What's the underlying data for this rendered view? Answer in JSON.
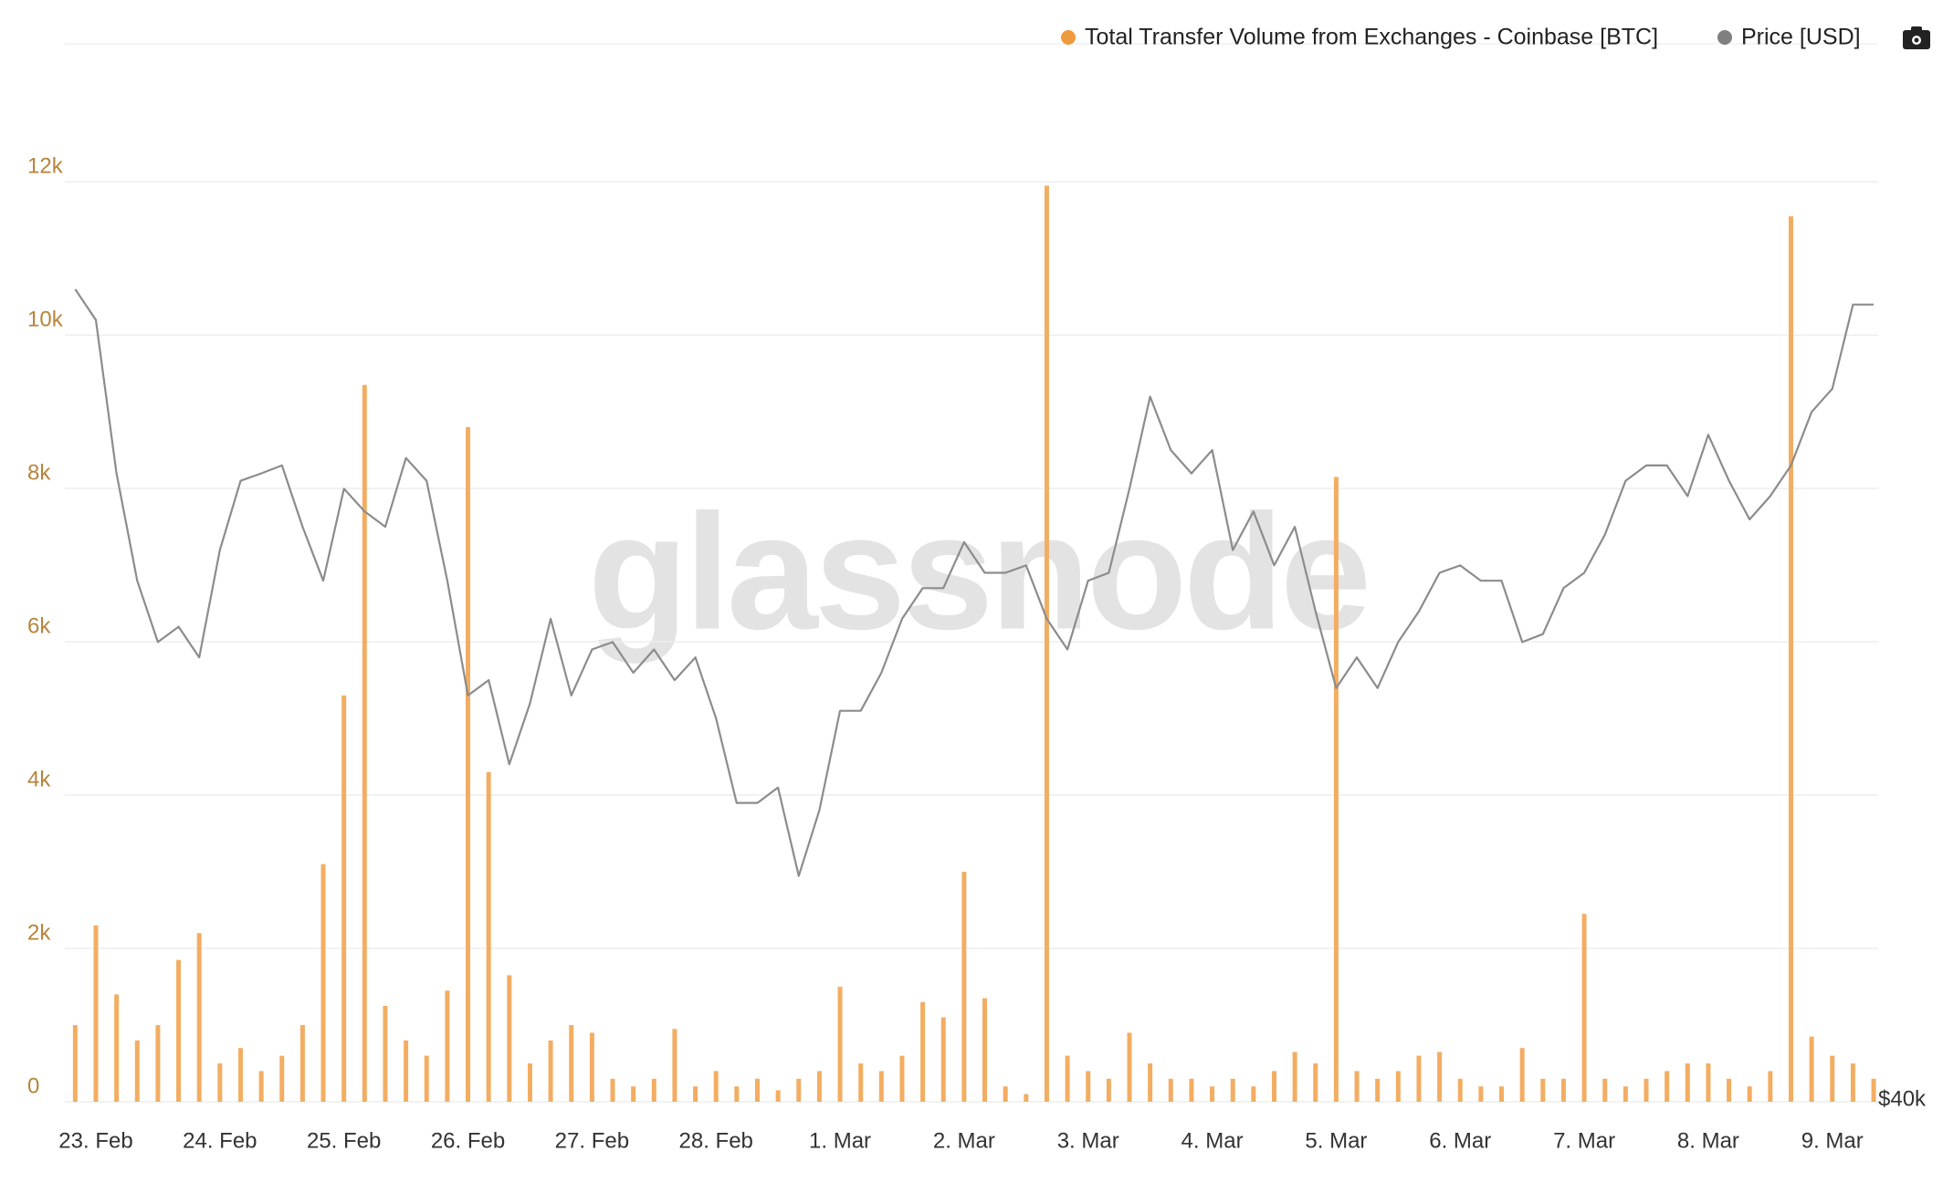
{
  "chart_data": {
    "type": "bar-line",
    "watermark": "glassnode",
    "categories": [
      null,
      "23. Feb",
      null,
      null,
      null,
      null,
      null,
      "24. Feb",
      null,
      null,
      null,
      null,
      null,
      "25. Feb",
      null,
      null,
      null,
      null,
      null,
      "26. Feb",
      null,
      null,
      null,
      null,
      null,
      "27. Feb",
      null,
      null,
      null,
      null,
      null,
      "28. Feb",
      null,
      null,
      null,
      null,
      null,
      "1. Mar",
      null,
      null,
      null,
      null,
      null,
      "2. Mar",
      null,
      null,
      null,
      null,
      null,
      "3. Mar",
      null,
      null,
      null,
      null,
      null,
      "4. Mar",
      null,
      null,
      null,
      null,
      null,
      "5. Mar",
      null,
      null,
      null,
      null,
      null,
      "6. Mar",
      null,
      null,
      null,
      null,
      null,
      "7. Mar",
      null,
      null,
      null,
      null,
      null,
      "8. Mar",
      null,
      null,
      null,
      null,
      null,
      "9. Mar",
      null,
      null
    ],
    "series": [
      {
        "name": "Total Transfer Volume from Exchanges - Coinbase [BTC]",
        "color": "#f3ad62",
        "type": "bar",
        "values": [
          1000,
          2300,
          1400,
          800,
          1000,
          1850,
          2200,
          500,
          700,
          400,
          600,
          1000,
          3100,
          5300,
          9350,
          1250,
          800,
          600,
          1450,
          8800,
          4300,
          1650,
          500,
          800,
          1000,
          900,
          300,
          200,
          300,
          950,
          200,
          400,
          200,
          300,
          150,
          300,
          400,
          1500,
          500,
          400,
          600,
          1300,
          1100,
          3000,
          1350,
          200,
          100,
          11950,
          600,
          400,
          300,
          900,
          500,
          300,
          300,
          200,
          300,
          200,
          400,
          650,
          500,
          8150,
          400,
          300,
          400,
          600,
          650,
          300,
          200,
          200,
          700,
          300,
          300,
          2450,
          300,
          200,
          300,
          400,
          500,
          500,
          300,
          200,
          400,
          11550,
          850,
          600,
          500,
          300
        ]
      },
      {
        "name": "Price [USD]",
        "color": "#8c8c8c",
        "type": "line",
        "axis": "y2",
        "values": [
          55360,
          54780,
          51880,
          49850,
          48690,
          48980,
          48400,
          50430,
          51740,
          51880,
          52030,
          50870,
          49850,
          51590,
          51160,
          50870,
          52170,
          51740,
          49850,
          47680,
          47970,
          46380,
          47530,
          49130,
          47680,
          48550,
          48690,
          48110,
          48550,
          47970,
          48400,
          47250,
          45650,
          45650,
          45940,
          44270,
          45510,
          47390,
          47390,
          48110,
          49130,
          49710,
          49710,
          50580,
          50000,
          50000,
          50140,
          49130,
          48550,
          49850,
          50000,
          51590,
          53330,
          52320,
          51880,
          52320,
          50430,
          51160,
          50140,
          50870,
          49270,
          47820,
          48400,
          47820,
          48690,
          49270,
          50000,
          50140,
          49850,
          49850,
          48690,
          48840,
          49710,
          50000,
          50720,
          51740,
          52030,
          52030,
          51450,
          52610,
          51740,
          51010,
          51450,
          52030,
          53040,
          53480,
          55070,
          55070
        ]
      }
    ],
    "ylim": [
      0,
      13800
    ],
    "yticks": [
      0,
      {
        "value": 2000,
        "label": "2k"
      },
      {
        "value": 4000,
        "label": "4k"
      },
      {
        "value": 6000,
        "label": "6k"
      },
      {
        "value": 8000,
        "label": "8k"
      },
      {
        "value": 10000,
        "label": "10k"
      },
      {
        "value": 12000,
        "label": "12k"
      }
    ],
    "y2lim": [
      40000,
      60000
    ],
    "y2ticks": [
      {
        "value": 40000,
        "label": "$40k"
      }
    ],
    "grid": true
  }
}
